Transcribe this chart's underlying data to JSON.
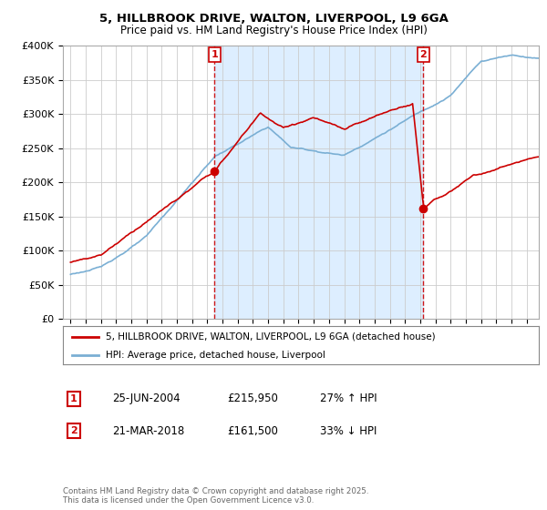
{
  "title1": "5, HILLBROOK DRIVE, WALTON, LIVERPOOL, L9 6GA",
  "title2": "Price paid vs. HM Land Registry's House Price Index (HPI)",
  "legend_line1": "5, HILLBROOK DRIVE, WALTON, LIVERPOOL, L9 6GA (detached house)",
  "legend_line2": "HPI: Average price, detached house, Liverpool",
  "sale1_date": "25-JUN-2004",
  "sale1_price": 215950,
  "sale1_label": "27% ↑ HPI",
  "sale2_date": "21-MAR-2018",
  "sale2_price": 161500,
  "sale2_label": "33% ↓ HPI",
  "footnote": "Contains HM Land Registry data © Crown copyright and database right 2025.\nThis data is licensed under the Open Government Licence v3.0.",
  "red_color": "#cc0000",
  "blue_color": "#7aafd4",
  "shade_color": "#ddeeff",
  "background_color": "#ffffff",
  "grid_color": "#cccccc",
  "ylim": [
    0,
    400000
  ],
  "xlim_start": 1994.5,
  "xlim_end": 2025.8,
  "sale1_x": 2004.47,
  "sale2_x": 2018.21
}
